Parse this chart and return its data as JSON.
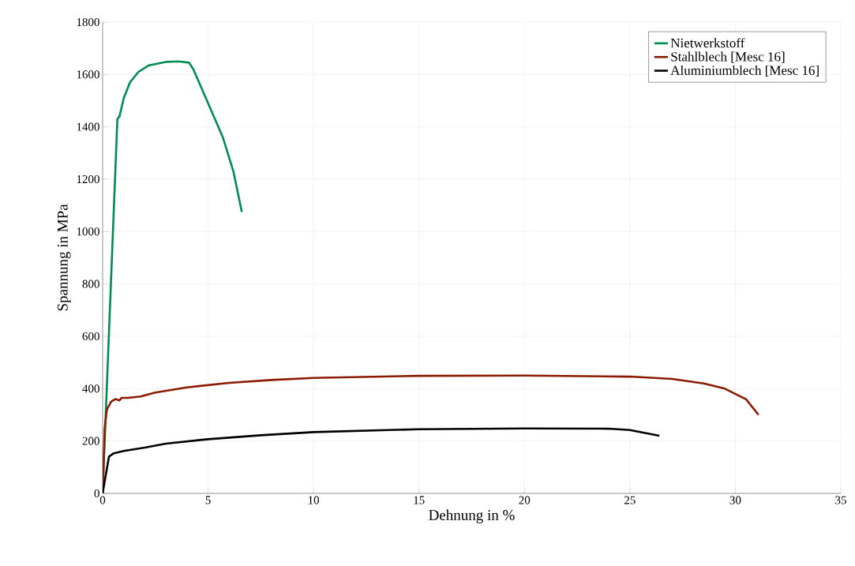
{
  "chart_data": {
    "type": "line",
    "xlabel": "Dehnung in %",
    "ylabel": "Spannung in MPa",
    "xlim": [
      0,
      35
    ],
    "ylim": [
      0,
      1800
    ],
    "xticks": [
      0,
      5,
      10,
      15,
      20,
      25,
      30,
      35
    ],
    "yticks": [
      0,
      200,
      400,
      600,
      800,
      1000,
      1200,
      1400,
      1600,
      1800
    ],
    "grid": true,
    "legend": "top right",
    "line_style": "solid",
    "series": [
      {
        "name": "Nietwerkstoff",
        "color": "#008b4f",
        "x": [
          0,
          0.7,
          0.8,
          1.0,
          1.3,
          1.7,
          2.2,
          3.0,
          3.6,
          4.1,
          4.3,
          5.0,
          5.7,
          6.2,
          6.6
        ],
        "values": [
          0,
          1430,
          1440,
          1510,
          1570,
          1610,
          1635,
          1648,
          1650,
          1645,
          1620,
          1490,
          1360,
          1230,
          1075
        ]
      },
      {
        "name": "Stahlblech [Mesc 16]",
        "color": "#8b1a00",
        "x": [
          0,
          0.1,
          0.2,
          0.4,
          0.6,
          0.8,
          0.9,
          1.2,
          1.8,
          2.5,
          4,
          6,
          8,
          10,
          15,
          20,
          25,
          27,
          28.5,
          29.5,
          30.5,
          31.1
        ],
        "values": [
          0,
          250,
          320,
          350,
          360,
          355,
          365,
          365,
          370,
          385,
          405,
          422,
          433,
          441,
          449,
          450,
          446,
          437,
          420,
          400,
          360,
          300
        ]
      },
      {
        "name": "Aluminiumblech [Mesc 16]",
        "color": "#000000",
        "x": [
          0,
          0.3,
          0.5,
          1,
          2,
          3,
          5,
          7.5,
          10,
          15,
          20,
          24,
          25,
          26.4
        ],
        "values": [
          0,
          140,
          152,
          162,
          175,
          190,
          207,
          222,
          234,
          245,
          248,
          247,
          242,
          220
        ]
      }
    ]
  }
}
